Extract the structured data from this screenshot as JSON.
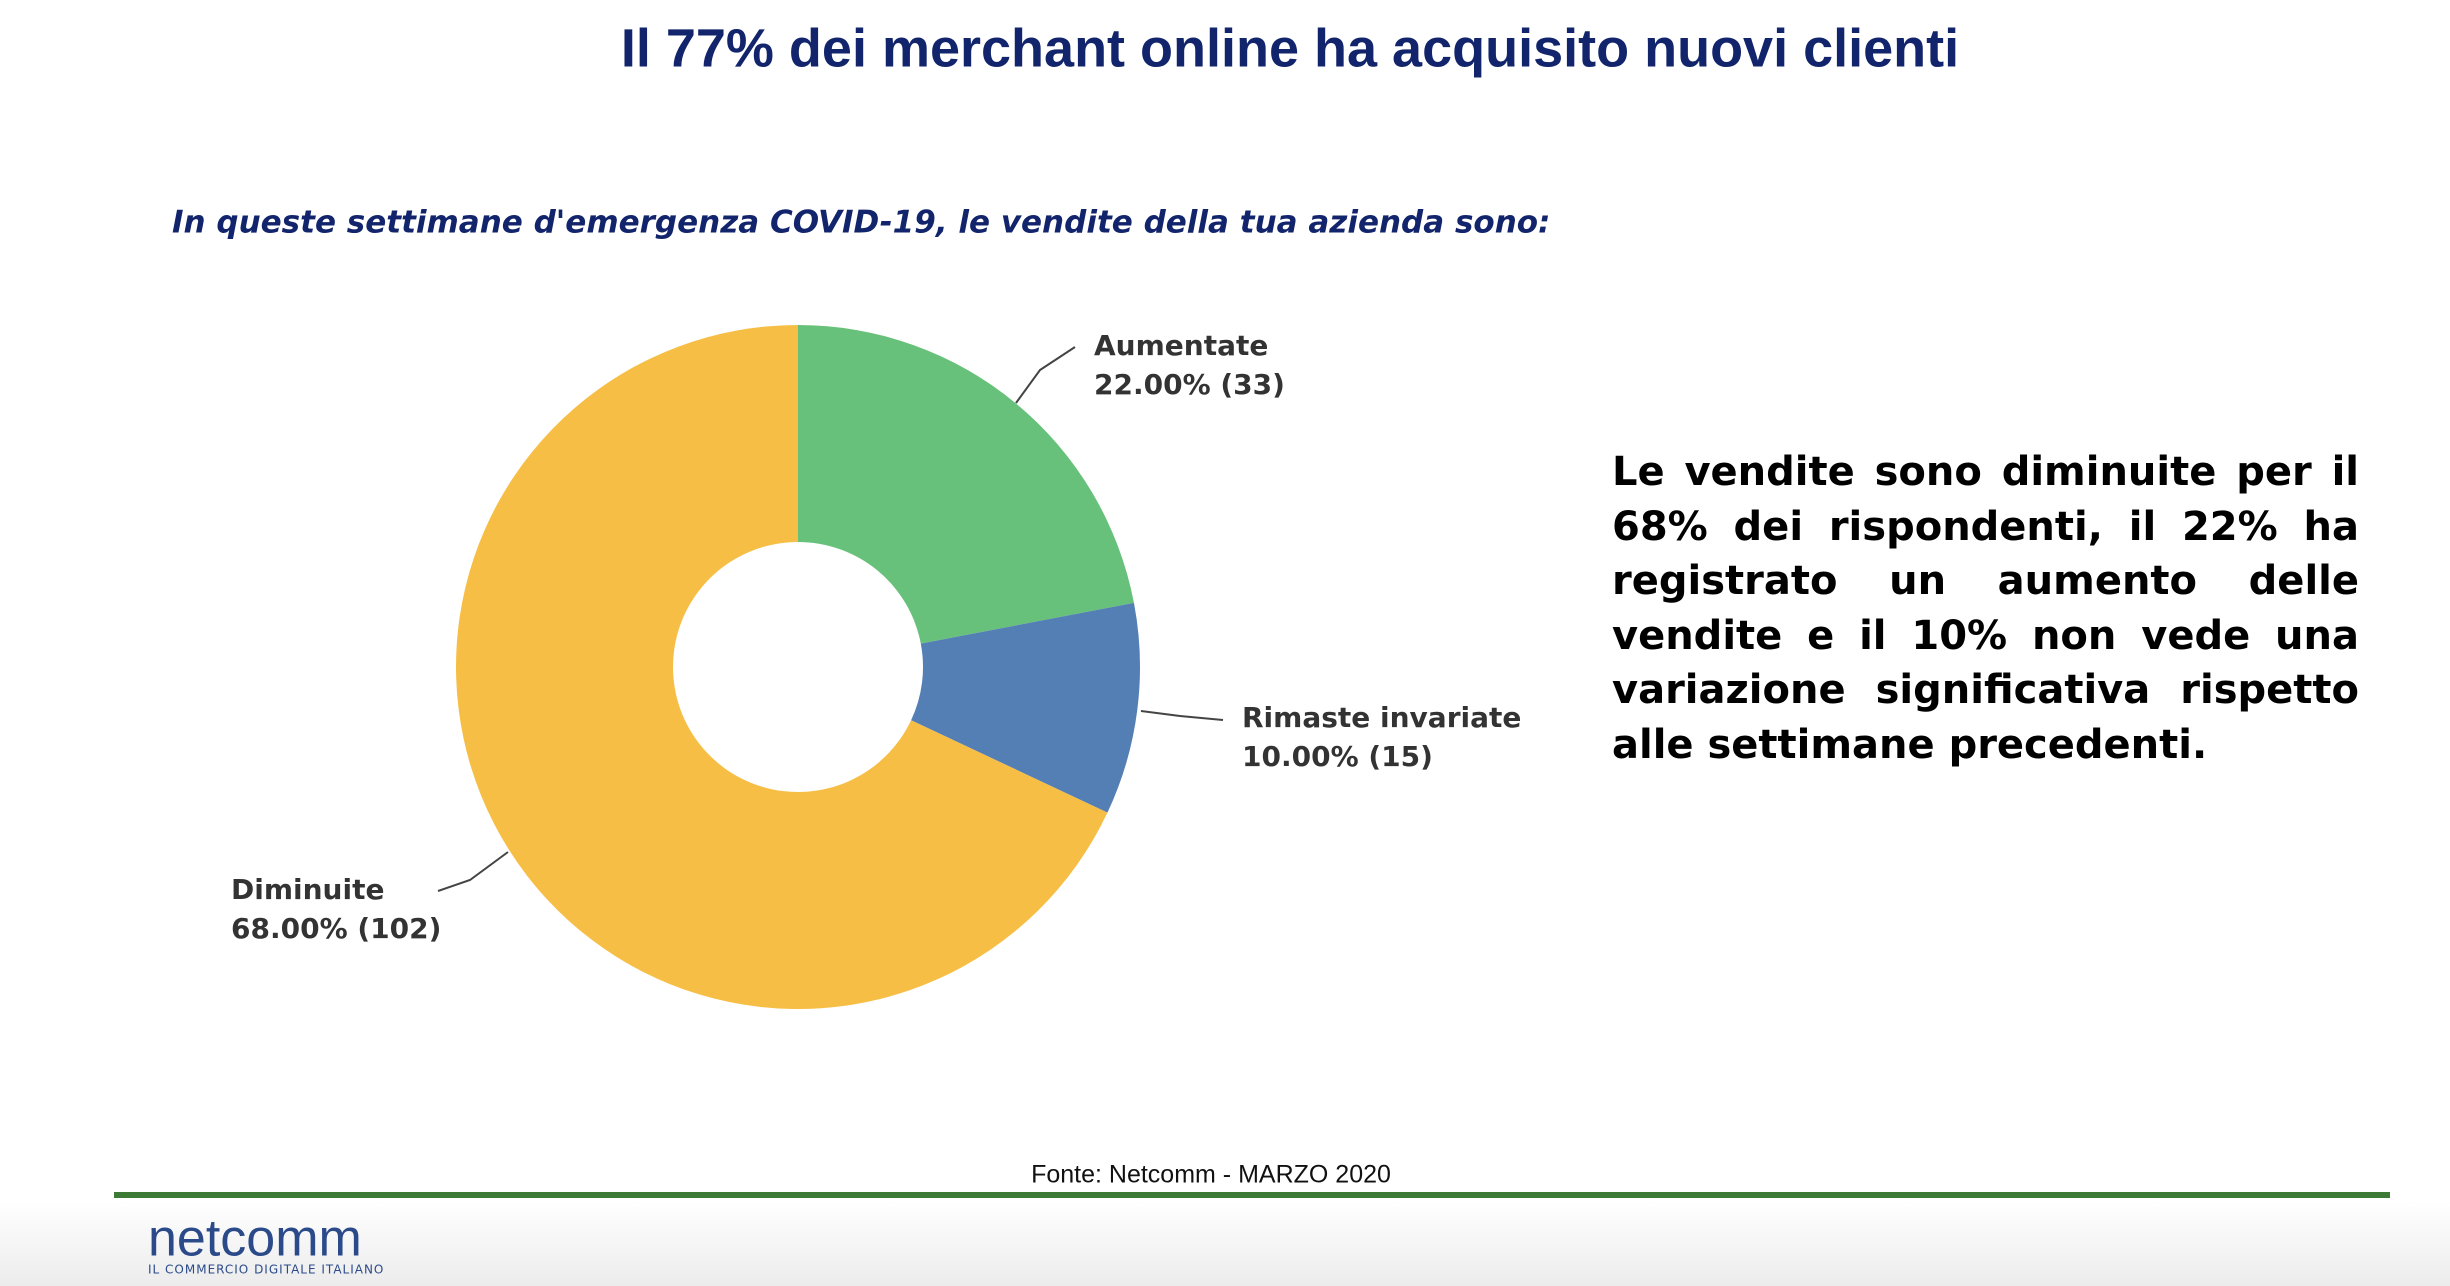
{
  "chart_data": {
    "type": "pie",
    "title": "Il 77% dei merchant online ha acquisito nuovi clienti",
    "subtitle": "In queste settimane d'emergenza COVID-19, le vendite della tua azienda sono:",
    "categories": [
      "Aumentate",
      "Rimaste invariate",
      "Diminuite"
    ],
    "values": [
      22,
      10,
      68
    ],
    "value_labels": [
      "22.00% (33)",
      "10.00% (15)",
      "68.00% (102)"
    ],
    "colors": [
      "#68c17a",
      "#537fb5",
      "#f7be45"
    ]
  },
  "note": "Le vendite sono diminuite per il 68% dei rispondenti, il 22% ha registrato un aumento delle vendite e il 10% non vede una variazione significativa rispetto alle settimane precedenti.",
  "source": "Fonte: Netcomm - MARZO 2020",
  "logo": {
    "name": "netcomm",
    "tagline": "IL COMMERCIO DIGITALE ITALIANO"
  }
}
